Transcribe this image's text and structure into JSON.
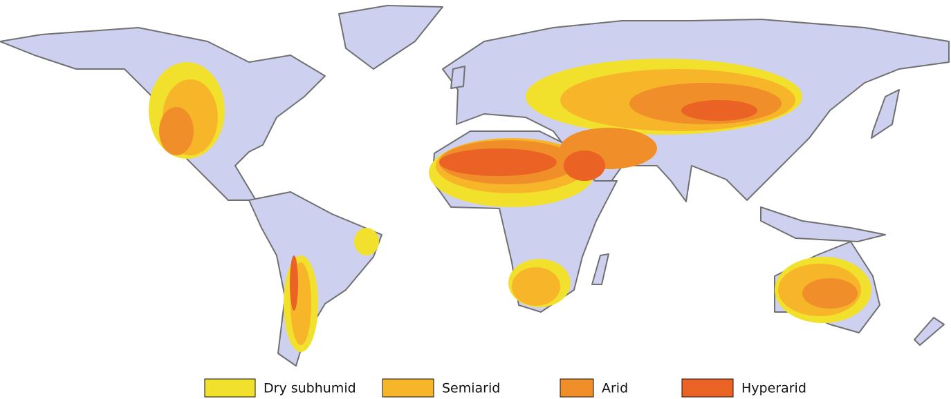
{
  "legend": {
    "items": [
      {
        "label": "Dry subhumid",
        "color": "#f2e12c"
      },
      {
        "label": "Semiarid",
        "color": "#f7b52a"
      },
      {
        "label": "Arid",
        "color": "#f08f2a"
      },
      {
        "label": "Hyperarid",
        "color": "#ea6224"
      }
    ]
  }
}
